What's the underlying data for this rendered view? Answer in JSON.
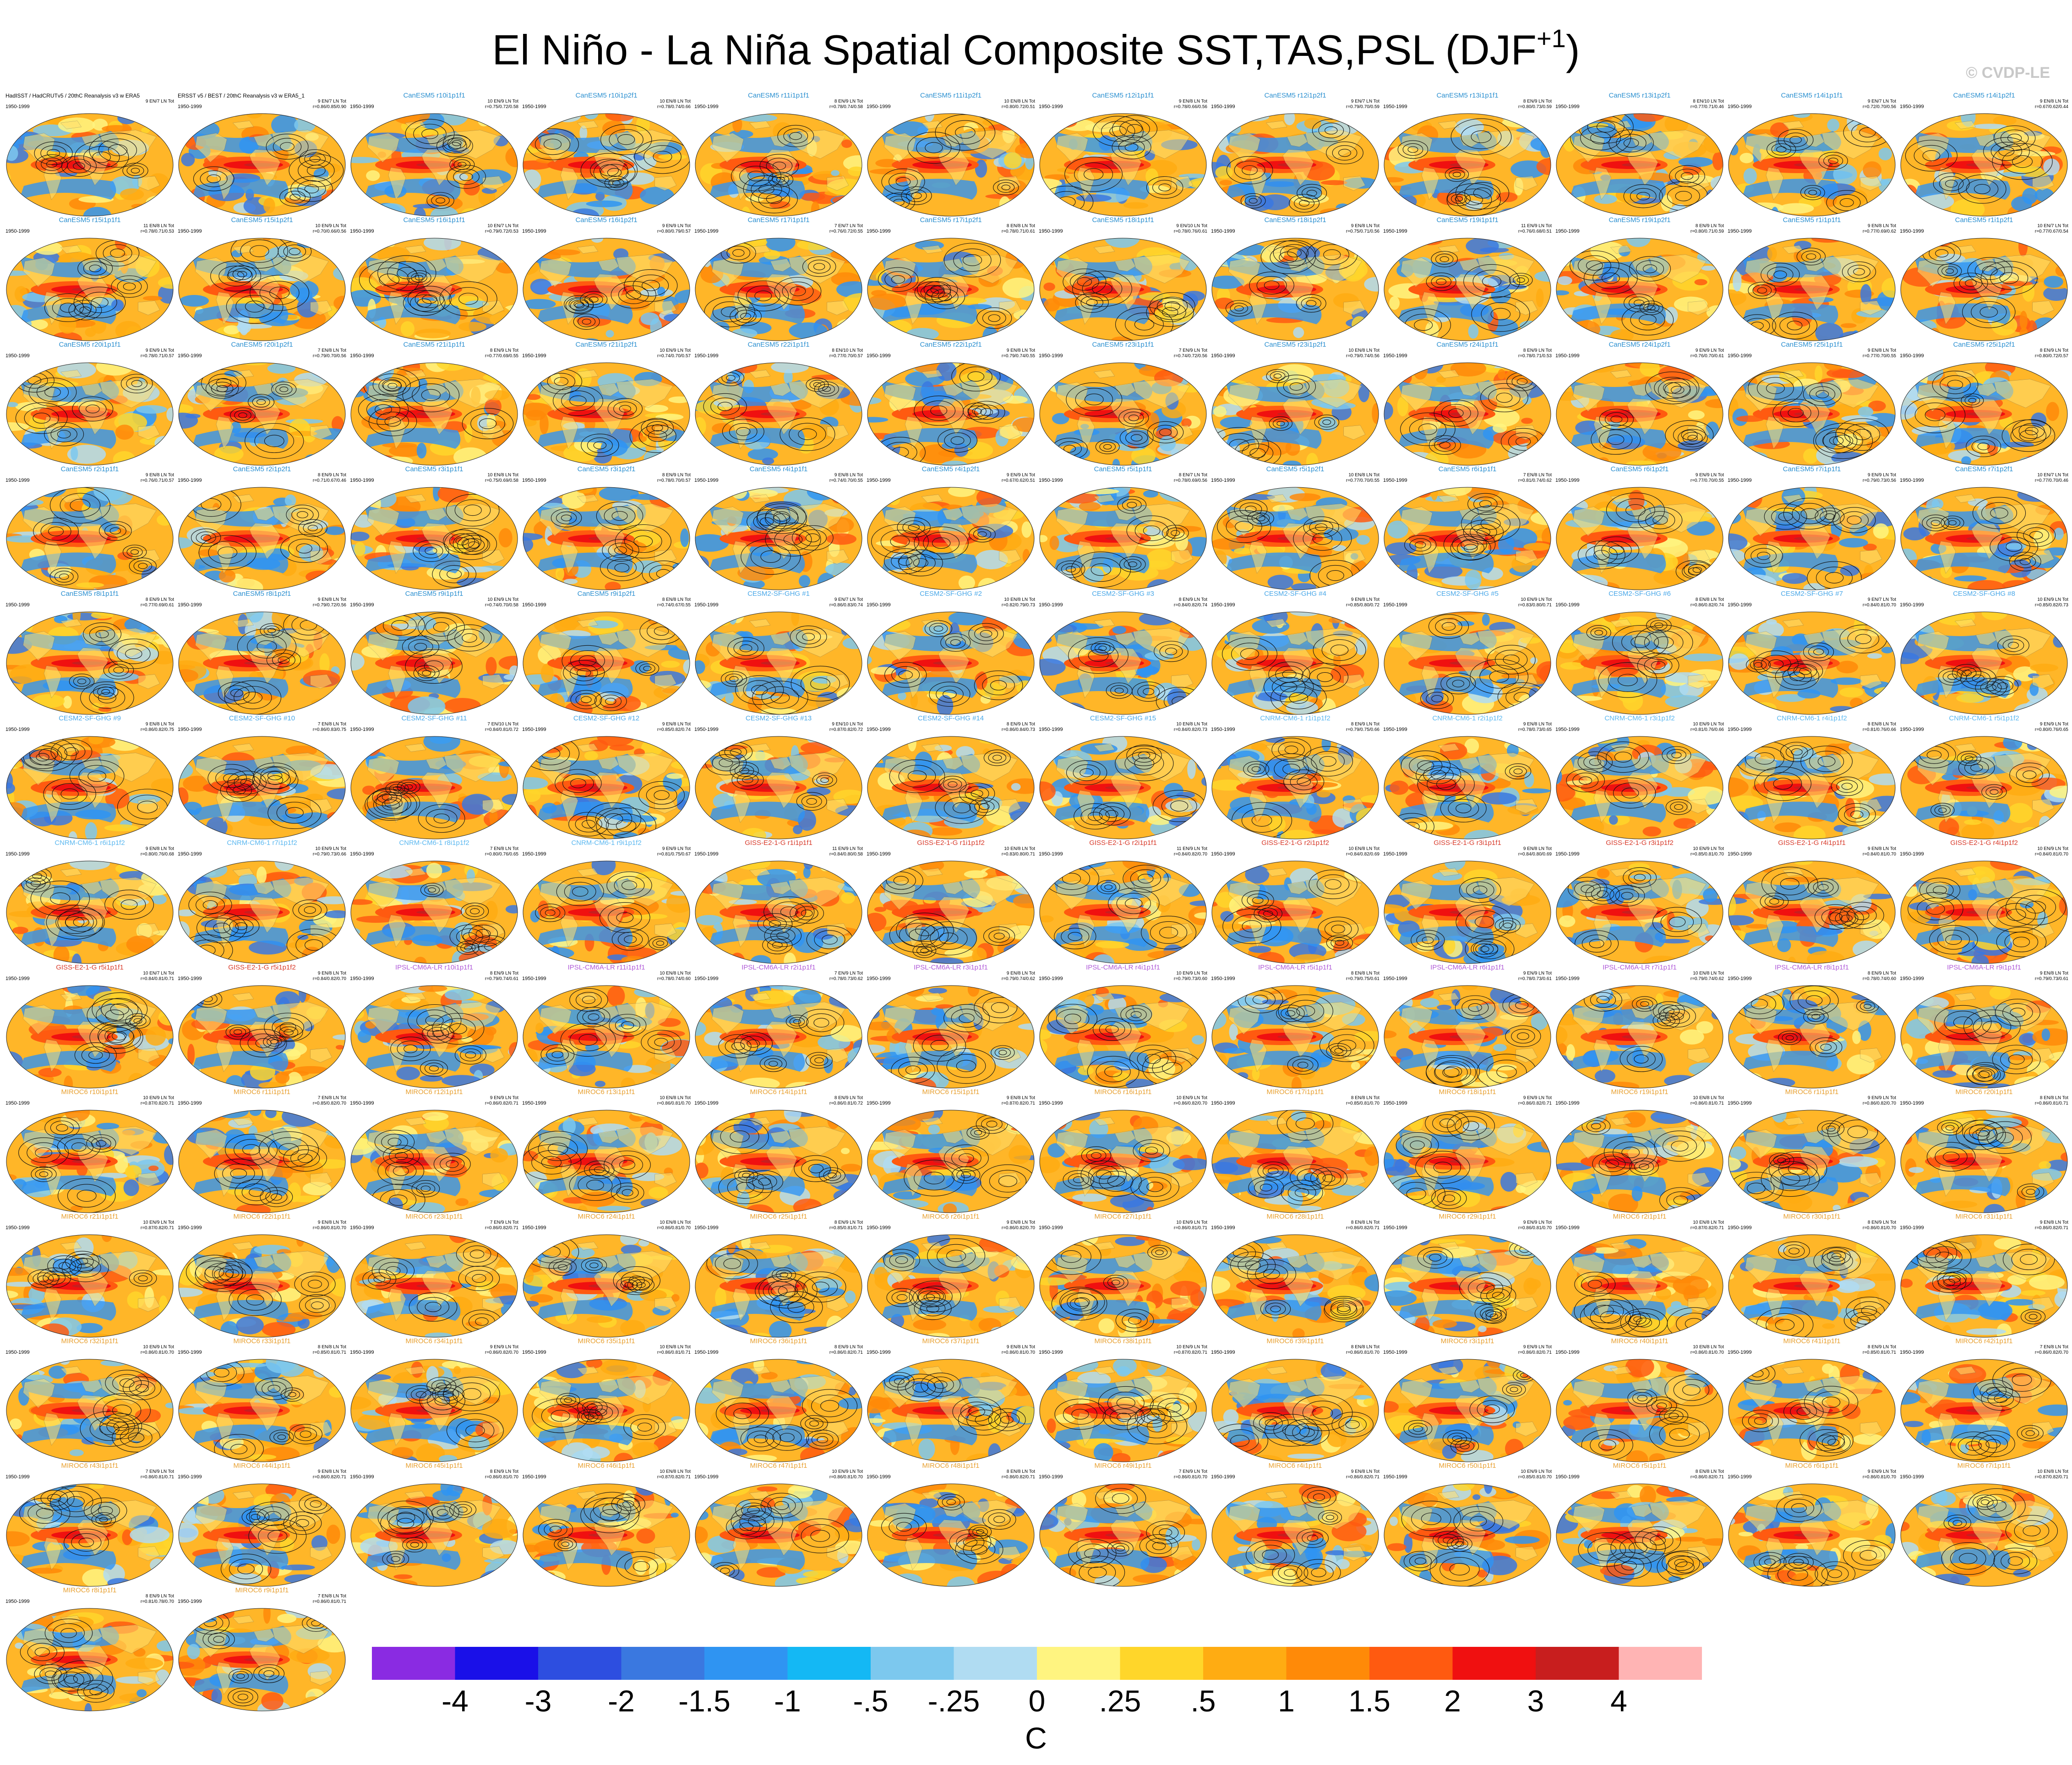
{
  "title": "El Niño - La Niña Spatial Composite SST,TAS,PSL (DJF",
  "title_sup": "+1",
  "title_close": ")",
  "credit": "© CVDP-LE",
  "period_label": "1950-1999",
  "colors": {
    "canesm5": "#2a8fd0",
    "cesm2": "#4aa8e8",
    "cnrm": "#5cb8f0",
    "giss": "#d83a2a",
    "ipsl": "#b05ad8",
    "miroc6": "#e8a030",
    "obs": "#000000"
  },
  "panels": [
    {
      "t": "HadISST / HadCRUTv5 / 20thC Reanalysis v3 w ERA5",
      "g": "obs",
      "s": "9 EN/7 LN Tot"
    },
    {
      "t": "ERSST v5 / BEST / 20thC Reanalysis v3 w ERA5_1",
      "g": "obs",
      "s": "9 EN/7 LN Tot\nr=0.86/0.85/0.90"
    },
    {
      "t": "CanESM5 r10i1p1f1",
      "g": "canesm5",
      "s": "10 EN/9 LN Tot\nr=0.75/0.72/0.58"
    },
    {
      "t": "CanESM5 r10i1p2f1",
      "g": "canesm5",
      "s": "10 EN/8 LN Tot\nr=0.78/0.74/0.66"
    },
    {
      "t": "CanESM5 r11i1p1f1",
      "g": "canesm5",
      "s": "8 EN/9 LN Tot\nr=0.78/0.74/0.58"
    },
    {
      "t": "CanESM5 r11i1p2f1",
      "g": "canesm5",
      "s": "10 EN/8 LN Tot\nr=0.80/0.72/0.51"
    },
    {
      "t": "CanESM5 r12i1p1f1",
      "g": "canesm5",
      "s": "9 EN/8 LN Tot\nr=0.78/0.66/0.56"
    },
    {
      "t": "CanESM5 r12i1p2f1",
      "g": "canesm5",
      "s": "9 EN/7 LN Tot\nr=0.79/0.70/0.59"
    },
    {
      "t": "CanESM5 r13i1p1f1",
      "g": "canesm5",
      "s": "8 EN/9 LN Tot\nr=0.80/0.73/0.59"
    },
    {
      "t": "CanESM5 r13i1p2f1",
      "g": "canesm5",
      "s": "8 EN/10 LN Tot\nr=0.77/0.71/0.46"
    },
    {
      "t": "CanESM5 r14i1p1f1",
      "g": "canesm5",
      "s": "9 EN/7 LN Tot\nr=0.72/0.70/0.56"
    },
    {
      "t": "CanESM5 r14i1p2f1",
      "g": "canesm5",
      "s": "9 EN/8 LN Tot\nr=0.67/0.62/0.44"
    },
    {
      "t": "CanESM5 r15i1p1f1",
      "g": "canesm5",
      "s": "11 EN/8 LN Tot\nr=0.78/0.71/0.53"
    },
    {
      "t": "CanESM5 r15i1p2f1",
      "g": "canesm5",
      "s": "10 EN/9 LN Tot\nr=0.70/0.66/0.56"
    },
    {
      "t": "CanESM5 r16i1p1f1",
      "g": "canesm5",
      "s": "10 EN/7 LN Tot\nr=0.79/0.72/0.53"
    },
    {
      "t": "CanESM5 r16i1p2f1",
      "g": "canesm5",
      "s": "9 EN/9 LN Tot\nr=0.80/0.79/0.57"
    },
    {
      "t": "CanESM5 r17i1p1f1",
      "g": "canesm5",
      "s": "7 EN/7 LN Tot\nr=0.76/0.72/0.55"
    },
    {
      "t": "CanESM5 r17i1p2f1",
      "g": "canesm5",
      "s": "8 EN/8 LN Tot\nr=0.78/0.71/0.61"
    },
    {
      "t": "CanESM5 r18i1p1f1",
      "g": "canesm5",
      "s": "9 EN/10 LN Tot\nr=0.78/0.76/0.61"
    },
    {
      "t": "CanESM5 r18i1p2f1",
      "g": "canesm5",
      "s": "9 EN/8 LN Tot\nr=0.75/0.71/0.56"
    },
    {
      "t": "CanESM5 r19i1p1f1",
      "g": "canesm5",
      "s": "11 EN/9 LN Tot\nr=0.76/0.68/0.51"
    },
    {
      "t": "CanESM5 r19i1p2f1",
      "g": "canesm5",
      "s": "8 EN/9 LN Tot\nr=0.80/0.71/0.59"
    },
    {
      "t": "CanESM5 r1i1p1f1",
      "g": "canesm5",
      "s": "9 EN/8 LN Tot\nr=0.77/0.69/0.62"
    },
    {
      "t": "CanESM5 r1i1p2f1",
      "g": "canesm5",
      "s": "10 EN/7 LN Tot\nr=0.77/0.67/0.54"
    },
    {
      "t": "CanESM5 r20i1p1f1",
      "g": "canesm5",
      "s": "9 EN/9 LN Tot\nr=0.78/0.71/0.57"
    },
    {
      "t": "CanESM5 r20i1p2f1",
      "g": "canesm5",
      "s": "7 EN/8 LN Tot\nr=0.79/0.70/0.56"
    },
    {
      "t": "CanESM5 r21i1p1f1",
      "g": "canesm5",
      "s": "8 EN/9 LN Tot\nr=0.77/0.69/0.55"
    },
    {
      "t": "CanESM5 r21i1p2f1",
      "g": "canesm5",
      "s": "10 EN/9 LN Tot\nr=0.74/0.70/0.57"
    },
    {
      "t": "CanESM5 r22i1p1f1",
      "g": "canesm5",
      "s": "8 EN/10 LN Tot\nr=0.77/0.70/0.57"
    },
    {
      "t": "CanESM5 r22i1p2f1",
      "g": "canesm5",
      "s": "9 EN/8 LN Tot\nr=0.79/0.74/0.55"
    },
    {
      "t": "CanESM5 r23i1p1f1",
      "g": "canesm5",
      "s": "7 EN/9 LN Tot\nr=0.74/0.72/0.56"
    },
    {
      "t": "CanESM5 r23i1p2f1",
      "g": "canesm5",
      "s": "10 EN/8 LN Tot\nr=0.79/0.74/0.56"
    },
    {
      "t": "CanESM5 r24i1p1f1",
      "g": "canesm5",
      "s": "8 EN/9 LN Tot\nr=0.78/0.71/0.53"
    },
    {
      "t": "CanESM5 r24i1p2f1",
      "g": "canesm5",
      "s": "9 EN/9 LN Tot\nr=0.76/0.70/0.61"
    },
    {
      "t": "CanESM5 r25i1p1f1",
      "g": "canesm5",
      "s": "9 EN/8 LN Tot\nr=0.77/0.70/0.55"
    },
    {
      "t": "CanESM5 r25i1p2f1",
      "g": "canesm5",
      "s": "8 EN/9 LN Tot\nr=0.80/0.72/0.57"
    },
    {
      "t": "CanESM5 r2i1p1f1",
      "g": "canesm5",
      "s": "9 EN/8 LN Tot\nr=0.76/0.71/0.57"
    },
    {
      "t": "CanESM5 r2i1p2f1",
      "g": "canesm5",
      "s": "8 EN/9 LN Tot\nr=0.71/0.67/0.46"
    },
    {
      "t": "CanESM5 r3i1p1f1",
      "g": "canesm5",
      "s": "10 EN/8 LN Tot\nr=0.75/0.69/0.58"
    },
    {
      "t": "CanESM5 r3i1p2f1",
      "g": "canesm5",
      "s": "8 EN/9 LN Tot\nr=0.78/0.70/0.57"
    },
    {
      "t": "CanESM5 r4i1p1f1",
      "g": "canesm5",
      "s": "9 EN/8 LN Tot\nr=0.74/0.70/0.55"
    },
    {
      "t": "CanESM5 r4i1p2f1",
      "g": "canesm5",
      "s": "9 EN/9 LN Tot\nr=0.67/0.62/0.51"
    },
    {
      "t": "CanESM5 r5i1p1f1",
      "g": "canesm5",
      "s": "8 EN/7 LN Tot\nr=0.78/0.69/0.56"
    },
    {
      "t": "CanESM5 r5i1p2f1",
      "g": "canesm5",
      "s": "10 EN/8 LN Tot\nr=0.77/0.70/0.55"
    },
    {
      "t": "CanESM5 r6i1p1f1",
      "g": "canesm5",
      "s": "7 EN/8 LN Tot\nr=0.81/0.74/0.62"
    },
    {
      "t": "CanESM5 r6i1p2f1",
      "g": "canesm5",
      "s": "9 EN/9 LN Tot\nr=0.77/0.70/0.55"
    },
    {
      "t": "CanESM5 r7i1p1f1",
      "g": "canesm5",
      "s": "9 EN/9 LN Tot\nr=0.79/0.73/0.56"
    },
    {
      "t": "CanESM5 r7i1p2f1",
      "g": "canesm5",
      "s": "10 EN/7 LN Tot\nr=0.77/0.70/0.46"
    },
    {
      "t": "CanESM5 r8i1p1f1",
      "g": "canesm5",
      "s": "8 EN/9 LN Tot\nr=0.77/0.69/0.61"
    },
    {
      "t": "CanESM5 r8i1p2f1",
      "g": "canesm5",
      "s": "9 EN/8 LN Tot\nr=0.79/0.72/0.56"
    },
    {
      "t": "CanESM5 r9i1p1f1",
      "g": "canesm5",
      "s": "10 EN/9 LN Tot\nr=0.74/0.70/0.58"
    },
    {
      "t": "CanESM5 r9i1p2f1",
      "g": "canesm5",
      "s": "8 EN/8 LN Tot\nr=0.74/0.67/0.55"
    },
    {
      "t": "CESM2-SF-GHG #1",
      "g": "cesm2",
      "s": "9 EN/7 LN Tot\nr=0.86/0.83/0.74"
    },
    {
      "t": "CESM2-SF-GHG #2",
      "g": "cesm2",
      "s": "10 EN/8 LN Tot\nr=0.82/0.79/0.73"
    },
    {
      "t": "CESM2-SF-GHG #3",
      "g": "cesm2",
      "s": "8 EN/9 LN Tot\nr=0.84/0.82/0.74"
    },
    {
      "t": "CESM2-SF-GHG #4",
      "g": "cesm2",
      "s": "9 EN/8 LN Tot\nr=0.85/0.80/0.72"
    },
    {
      "t": "CESM2-SF-GHG #5",
      "g": "cesm2",
      "s": "10 EN/9 LN Tot\nr=0.83/0.80/0.71"
    },
    {
      "t": "CESM2-SF-GHG #6",
      "g": "cesm2",
      "s": "8 EN/8 LN Tot\nr=0.86/0.82/0.74"
    },
    {
      "t": "CESM2-SF-GHG #7",
      "g": "cesm2",
      "s": "9 EN/7 LN Tot\nr=0.84/0.81/0.70"
    },
    {
      "t": "CESM2-SF-GHG #8",
      "g": "cesm2",
      "s": "10 EN/9 LN Tot\nr=0.85/0.82/0.73"
    },
    {
      "t": "CESM2-SF-GHG #9",
      "g": "cesm2",
      "s": "9 EN/8 LN Tot\nr=0.86/0.82/0.75"
    },
    {
      "t": "CESM2-SF-GHG #10",
      "g": "cesm2",
      "s": "7 EN/8 LN Tot\nr=0.86/0.83/0.75"
    },
    {
      "t": "CESM2-SF-GHG #11",
      "g": "cesm2",
      "s": "7 EN/10 LN Tot\nr=0.84/0.81/0.72"
    },
    {
      "t": "CESM2-SF-GHG #12",
      "g": "cesm2",
      "s": "9 EN/8 LN Tot\nr=0.85/0.82/0.74"
    },
    {
      "t": "CESM2-SF-GHG #13",
      "g": "cesm2",
      "s": "9 EN/10 LN Tot\nr=0.87/0.82/0.72"
    },
    {
      "t": "CESM2-SF-GHG #14",
      "g": "cesm2",
      "s": "8 EN/9 LN Tot\nr=0.86/0.84/0.73"
    },
    {
      "t": "CESM2-SF-GHG #15",
      "g": "cesm2",
      "s": "10 EN/8 LN Tot\nr=0.84/0.82/0.73"
    },
    {
      "t": "CNRM-CM6-1 r1i1p1f2",
      "g": "cnrm",
      "s": "8 EN/9 LN Tot\nr=0.79/0.75/0.66"
    },
    {
      "t": "CNRM-CM6-1 r2i1p1f2",
      "g": "cnrm",
      "s": "9 EN/8 LN Tot\nr=0.78/0.73/0.65"
    },
    {
      "t": "CNRM-CM6-1 r3i1p1f2",
      "g": "cnrm",
      "s": "10 EN/9 LN Tot\nr=0.81/0.76/0.66"
    },
    {
      "t": "CNRM-CM6-1 r4i1p1f2",
      "g": "cnrm",
      "s": "8 EN/8 LN Tot\nr=0.81/0.76/0.66"
    },
    {
      "t": "CNRM-CM6-1 r5i1p1f2",
      "g": "cnrm",
      "s": "9 EN/9 LN Tot\nr=0.80/0.76/0.65"
    },
    {
      "t": "CNRM-CM6-1 r6i1p1f2",
      "g": "cnrm",
      "s": "9 EN/8 LN Tot\nr=0.80/0.76/0.68"
    },
    {
      "t": "CNRM-CM6-1 r7i1p1f2",
      "g": "cnrm",
      "s": "10 EN/9 LN Tot\nr=0.79/0.73/0.66"
    },
    {
      "t": "CNRM-CM6-1 r8i1p1f2",
      "g": "cnrm",
      "s": "7 EN/8 LN Tot\nr=0.80/0.76/0.65"
    },
    {
      "t": "CNRM-CM6-1 r9i1p1f2",
      "g": "cnrm",
      "s": "9 EN/9 LN Tot\nr=0.81/0.75/0.67"
    },
    {
      "t": "GISS-E2-1-G r1i1p1f1",
      "g": "giss",
      "s": "11 EN/9 LN Tot\nr=0.84/0.80/0.58"
    },
    {
      "t": "GISS-E2-1-G r1i1p1f2",
      "g": "giss",
      "s": "10 EN/8 LN Tot\nr=0.83/0.80/0.71"
    },
    {
      "t": "GISS-E2-1-G r2i1p1f1",
      "g": "giss",
      "s": "11 EN/9 LN Tot\nr=0.84/0.82/0.70"
    },
    {
      "t": "GISS-E2-1-G r2i1p1f2",
      "g": "giss",
      "s": "10 EN/8 LN Tot\nr=0.84/0.82/0.69"
    },
    {
      "t": "GISS-E2-1-G r3i1p1f1",
      "g": "giss",
      "s": "9 EN/8 LN Tot\nr=0.84/0.80/0.69"
    },
    {
      "t": "GISS-E2-1-G r3i1p1f2",
      "g": "giss",
      "s": "10 EN/9 LN Tot\nr=0.85/0.81/0.70"
    },
    {
      "t": "GISS-E2-1-G r4i1p1f1",
      "g": "giss",
      "s": "9 EN/8 LN Tot\nr=0.84/0.81/0.70"
    },
    {
      "t": "GISS-E2-1-G r4i1p1f2",
      "g": "giss",
      "s": "10 EN/9 LN Tot\nr=0.84/0.81/0.70"
    },
    {
      "t": "GISS-E2-1-G r5i1p1f1",
      "g": "giss",
      "s": "10 EN/7 LN Tot\nr=0.84/0.81/0.71"
    },
    {
      "t": "GISS-E2-1-G r5i1p1f2",
      "g": "giss",
      "s": "9 EN/8 LN Tot\nr=0.84/0.82/0.70"
    },
    {
      "t": "IPSL-CM6A-LR r10i1p1f1",
      "g": "ipsl",
      "s": "8 EN/9 LN Tot\nr=0.79/0.74/0.61"
    },
    {
      "t": "IPSL-CM6A-LR r11i1p1f1",
      "g": "ipsl",
      "s": "10 EN/8 LN Tot\nr=0.78/0.74/0.60"
    },
    {
      "t": "IPSL-CM6A-LR r2i1p1f1",
      "g": "ipsl",
      "s": "7 EN/9 LN Tot\nr=0.78/0.73/0.62"
    },
    {
      "t": "IPSL-CM6A-LR r3i1p1f1",
      "g": "ipsl",
      "s": "9 EN/8 LN Tot\nr=0.79/0.74/0.62"
    },
    {
      "t": "IPSL-CM6A-LR r4i1p1f1",
      "g": "ipsl",
      "s": "10 EN/9 LN Tot\nr=0.79/0.73/0.60"
    },
    {
      "t": "IPSL-CM6A-LR r5i1p1f1",
      "g": "ipsl",
      "s": "8 EN/8 LN Tot\nr=0.79/0.75/0.61"
    },
    {
      "t": "IPSL-CM6A-LR r6i1p1f1",
      "g": "ipsl",
      "s": "9 EN/9 LN Tot\nr=0.78/0.73/0.61"
    },
    {
      "t": "IPSL-CM6A-LR r7i1p1f1",
      "g": "ipsl",
      "s": "10 EN/8 LN Tot\nr=0.79/0.74/0.62"
    },
    {
      "t": "IPSL-CM6A-LR r8i1p1f1",
      "g": "ipsl",
      "s": "8 EN/9 LN Tot\nr=0.78/0.74/0.60"
    },
    {
      "t": "IPSL-CM6A-LR r9i1p1f1",
      "g": "ipsl",
      "s": "9 EN/8 LN Tot\nr=0.79/0.73/0.61"
    },
    {
      "t": "MIROC6 r10i1p1f1",
      "g": "miroc6",
      "s": "10 EN/9 LN Tot\nr=0.87/0.82/0.71"
    },
    {
      "t": "MIROC6 r11i1p1f1",
      "g": "miroc6",
      "s": "7 EN/8 LN Tot\nr=0.85/0.82/0.70"
    },
    {
      "t": "MIROC6 r12i1p1f1",
      "g": "miroc6",
      "s": "9 EN/9 LN Tot\nr=0.86/0.82/0.71"
    },
    {
      "t": "MIROC6 r13i1p1f1",
      "g": "miroc6",
      "s": "10 EN/8 LN Tot\nr=0.86/0.81/0.70"
    },
    {
      "t": "MIROC6 r14i1p1f1",
      "g": "miroc6",
      "s": "8 EN/9 LN Tot\nr=0.86/0.81/0.72"
    },
    {
      "t": "MIROC6 r15i1p1f1",
      "g": "miroc6",
      "s": "9 EN/8 LN Tot\nr=0.87/0.82/0.71"
    },
    {
      "t": "MIROC6 r16i1p1f1",
      "g": "miroc6",
      "s": "10 EN/9 LN Tot\nr=0.86/0.82/0.70"
    },
    {
      "t": "MIROC6 r17i1p1f1",
      "g": "miroc6",
      "s": "8 EN/8 LN Tot\nr=0.85/0.81/0.70"
    },
    {
      "t": "MIROC6 r18i1p1f1",
      "g": "miroc6",
      "s": "9 EN/9 LN Tot\nr=0.86/0.82/0.71"
    },
    {
      "t": "MIROC6 r19i1p1f1",
      "g": "miroc6",
      "s": "10 EN/8 LN Tot\nr=0.86/0.81/0.71"
    },
    {
      "t": "MIROC6 r1i1p1f1",
      "g": "miroc6",
      "s": "9 EN/9 LN Tot\nr=0.86/0.82/0.70"
    },
    {
      "t": "MIROC6 r20i1p1f1",
      "g": "miroc6",
      "s": "8 EN/8 LN Tot\nr=0.86/0.81/0.71"
    },
    {
      "t": "MIROC6 r21i1p1f1",
      "g": "miroc6",
      "s": "10 EN/9 LN Tot\nr=0.87/0.82/0.71"
    },
    {
      "t": "MIROC6 r22i1p1f1",
      "g": "miroc6",
      "s": "9 EN/8 LN Tot\nr=0.86/0.81/0.70"
    },
    {
      "t": "MIROC6 r23i1p1f1",
      "g": "miroc6",
      "s": "7 EN/9 LN Tot\nr=0.86/0.82/0.71"
    },
    {
      "t": "MIROC6 r24i1p1f1",
      "g": "miroc6",
      "s": "10 EN/8 LN Tot\nr=0.86/0.81/0.70"
    },
    {
      "t": "MIROC6 r25i1p1f1",
      "g": "miroc6",
      "s": "8 EN/9 LN Tot\nr=0.85/0.81/0.71"
    },
    {
      "t": "MIROC6 r26i1p1f1",
      "g": "miroc6",
      "s": "9 EN/8 LN Tot\nr=0.86/0.82/0.70"
    },
    {
      "t": "MIROC6 r27i1p1f1",
      "g": "miroc6",
      "s": "10 EN/9 LN Tot\nr=0.86/0.81/0.71"
    },
    {
      "t": "MIROC6 r28i1p1f1",
      "g": "miroc6",
      "s": "8 EN/8 LN Tot\nr=0.86/0.82/0.71"
    },
    {
      "t": "MIROC6 r29i1p1f1",
      "g": "miroc6",
      "s": "9 EN/9 LN Tot\nr=0.86/0.81/0.70"
    },
    {
      "t": "MIROC6 r2i1p1f1",
      "g": "miroc6",
      "s": "10 EN/8 LN Tot\nr=0.87/0.82/0.71"
    },
    {
      "t": "MIROC6 r30i1p1f1",
      "g": "miroc6",
      "s": "8 EN/9 LN Tot\nr=0.86/0.81/0.70"
    },
    {
      "t": "MIROC6 r31i1p1f1",
      "g": "miroc6",
      "s": "9 EN/8 LN Tot\nr=0.86/0.82/0.71"
    },
    {
      "t": "MIROC6 r32i1p1f1",
      "g": "miroc6",
      "s": "10 EN/9 LN Tot\nr=0.86/0.81/0.70"
    },
    {
      "t": "MIROC6 r33i1p1f1",
      "g": "miroc6",
      "s": "8 EN/8 LN Tot\nr=0.85/0.81/0.71"
    },
    {
      "t": "MIROC6 r34i1p1f1",
      "g": "miroc6",
      "s": "9 EN/9 LN Tot\nr=0.86/0.82/0.70"
    },
    {
      "t": "MIROC6 r35i1p1f1",
      "g": "miroc6",
      "s": "10 EN/8 LN Tot\nr=0.86/0.81/0.71"
    },
    {
      "t": "MIROC6 r36i1p1f1",
      "g": "miroc6",
      "s": "8 EN/9 LN Tot\nr=0.86/0.82/0.71"
    },
    {
      "t": "MIROC6 r37i1p1f1",
      "g": "miroc6",
      "s": "9 EN/8 LN Tot\nr=0.86/0.81/0.70"
    },
    {
      "t": "MIROC6 r38i1p1f1",
      "g": "miroc6",
      "s": "10 EN/9 LN Tot\nr=0.87/0.82/0.71"
    },
    {
      "t": "MIROC6 r39i1p1f1",
      "g": "miroc6",
      "s": "8 EN/8 LN Tot\nr=0.86/0.81/0.70"
    },
    {
      "t": "MIROC6 r3i1p1f1",
      "g": "miroc6",
      "s": "9 EN/9 LN Tot\nr=0.86/0.82/0.71"
    },
    {
      "t": "MIROC6 r40i1p1f1",
      "g": "miroc6",
      "s": "10 EN/8 LN Tot\nr=0.86/0.81/0.70"
    },
    {
      "t": "MIROC6 r41i1p1f1",
      "g": "miroc6",
      "s": "8 EN/9 LN Tot\nr=0.85/0.81/0.71"
    },
    {
      "t": "MIROC6 r42i1p1f1",
      "g": "miroc6",
      "s": "7 EN/8 LN Tot\nr=0.86/0.82/0.70"
    },
    {
      "t": "MIROC6 r43i1p1f1",
      "g": "miroc6",
      "s": "7 EN/9 LN Tot\nr=0.86/0.81/0.71"
    },
    {
      "t": "MIROC6 r44i1p1f1",
      "g": "miroc6",
      "s": "9 EN/8 LN Tot\nr=0.86/0.82/0.71"
    },
    {
      "t": "MIROC6 r45i1p1f1",
      "g": "miroc6",
      "s": "8 EN/9 LN Tot\nr=0.86/0.81/0.70"
    },
    {
      "t": "MIROC6 r46i1p1f1",
      "g": "miroc6",
      "s": "10 EN/8 LN Tot\nr=0.87/0.82/0.71"
    },
    {
      "t": "MIROC6 r47i1p1f1",
      "g": "miroc6",
      "s": "10 EN/9 LN Tot\nr=0.86/0.81/0.70"
    },
    {
      "t": "MIROC6 r48i1p1f1",
      "g": "miroc6",
      "s": "8 EN/8 LN Tot\nr=0.86/0.82/0.71"
    },
    {
      "t": "MIROC6 r49i1p1f1",
      "g": "miroc6",
      "s": "7 EN/9 LN Tot\nr=0.86/0.81/0.70"
    },
    {
      "t": "MIROC6 r4i1p1f1",
      "g": "miroc6",
      "s": "9 EN/8 LN Tot\nr=0.86/0.82/0.71"
    },
    {
      "t": "MIROC6 r50i1p1f1",
      "g": "miroc6",
      "s": "10 EN/9 LN Tot\nr=0.85/0.81/0.70"
    },
    {
      "t": "MIROC6 r5i1p1f1",
      "g": "miroc6",
      "s": "8 EN/8 LN Tot\nr=0.86/0.82/0.71"
    },
    {
      "t": "MIROC6 r6i1p1f1",
      "g": "miroc6",
      "s": "9 EN/9 LN Tot\nr=0.86/0.81/0.70"
    },
    {
      "t": "MIROC6 r7i1p1f1",
      "g": "miroc6",
      "s": "10 EN/8 LN Tot\nr=0.87/0.82/0.71"
    },
    {
      "t": "MIROC6 r8i1p1f1",
      "g": "miroc6",
      "s": "8 EN/9 LN Tot\nr=0.81/0.78/0.70"
    },
    {
      "t": "MIROC6 r9i1p1f1",
      "g": "miroc6",
      "s": "7 EN/8 LN Tot\nr=0.86/0.81/0.71"
    }
  ],
  "colorbar": {
    "labels": [
      "-4",
      "-3",
      "-2",
      "-1.5",
      "-1",
      "-.5",
      "-.25",
      "0",
      ".25",
      ".5",
      "1",
      "1.5",
      "2",
      "3",
      "4"
    ],
    "colors": [
      "#8a2be2",
      "#1a10e8",
      "#2d4ee0",
      "#3a78e0",
      "#2f94f2",
      "#14b8f4",
      "#7cc8ee",
      "#b0dcf2",
      "#fff480",
      "#ffd62a",
      "#ffac12",
      "#ff8a08",
      "#ff5a10",
      "#f01010",
      "#c81e1e",
      "#ffb4b4"
    ],
    "unit": "C"
  }
}
